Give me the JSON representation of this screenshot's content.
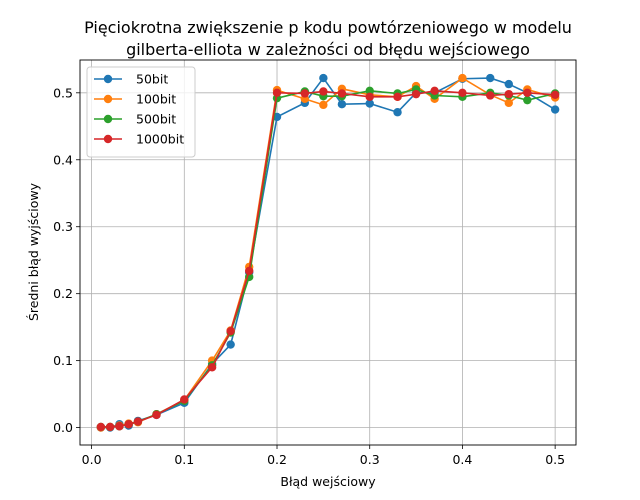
{
  "chart_data": {
    "type": "line",
    "title_lines": [
      "Pięciokrotna zwiększenie p kodu  powtórzeniowego w modelu",
      "gilberta-elliota w zależności od błędu wejściowego"
    ],
    "xlabel": "Błąd wejściowy",
    "ylabel": "Średni błąd wyjściowy",
    "xlim": [
      -0.0125,
      0.5225
    ],
    "ylim": [
      -0.026,
      0.549
    ],
    "xticks": [
      0.0,
      0.1,
      0.2,
      0.3,
      0.4,
      0.5
    ],
    "xtick_labels": [
      "0.0",
      "0.1",
      "0.2",
      "0.3",
      "0.4",
      "0.5"
    ],
    "yticks": [
      0.0,
      0.1,
      0.2,
      0.3,
      0.4,
      0.5
    ],
    "ytick_labels": [
      "0.0",
      "0.1",
      "0.2",
      "0.3",
      "0.4",
      "0.5"
    ],
    "grid": true,
    "legend_position": "top-left",
    "x": [
      0.01,
      0.02,
      0.03,
      0.04,
      0.05,
      0.07,
      0.1,
      0.13,
      0.15,
      0.17,
      0.2,
      0.23,
      0.25,
      0.27,
      0.3,
      0.33,
      0.35,
      0.37,
      0.4,
      0.43,
      0.45,
      0.47,
      0.5
    ],
    "series": [
      {
        "name": "50bit",
        "color": "#1f77b4",
        "values": [
          0.0,
          0.0,
          0.005,
          0.003,
          0.01,
          0.019,
          0.037,
          0.095,
          0.124,
          0.232,
          0.464,
          0.485,
          0.522,
          0.483,
          0.484,
          0.471,
          0.5,
          0.5,
          0.521,
          0.522,
          0.513,
          0.5,
          0.475
        ]
      },
      {
        "name": "100bit",
        "color": "#ff7f0e",
        "values": [
          0.0,
          0.001,
          0.003,
          0.006,
          0.008,
          0.02,
          0.041,
          0.1,
          0.145,
          0.24,
          0.504,
          0.491,
          0.482,
          0.506,
          0.497,
          0.494,
          0.51,
          0.491,
          0.522,
          0.497,
          0.485,
          0.505,
          0.493
        ]
      },
      {
        "name": "500bit",
        "color": "#2ca02c",
        "values": [
          0.001,
          0.001,
          0.002,
          0.005,
          0.009,
          0.02,
          0.04,
          0.093,
          0.142,
          0.225,
          0.492,
          0.502,
          0.495,
          0.495,
          0.503,
          0.499,
          0.505,
          0.496,
          0.494,
          0.5,
          0.496,
          0.489,
          0.499
        ]
      },
      {
        "name": "1000bit",
        "color": "#d62728",
        "values": [
          0.001,
          0.001,
          0.002,
          0.005,
          0.009,
          0.019,
          0.042,
          0.09,
          0.144,
          0.234,
          0.5,
          0.499,
          0.502,
          0.499,
          0.494,
          0.494,
          0.498,
          0.503,
          0.5,
          0.496,
          0.498,
          0.5,
          0.497
        ]
      }
    ]
  }
}
